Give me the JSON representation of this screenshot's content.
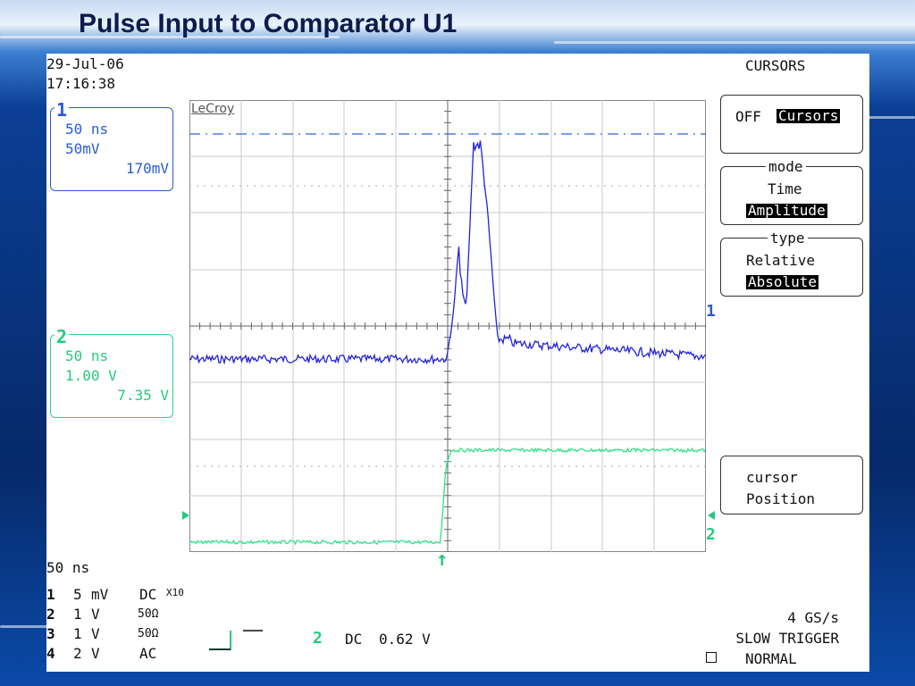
{
  "slide": {
    "title": "Pulse Input to Comparator U1"
  },
  "scope": {
    "date": "29-Jul-06",
    "time": "17:16:38",
    "brand": "LeCroy",
    "timebase": "50 ns",
    "channel1": {
      "number": "1",
      "timebase": "50 ns",
      "scale": "50mV",
      "offset": "170mV",
      "color": "#2a5bd7"
    },
    "channel2": {
      "number": "2",
      "timebase": "50 ns",
      "scale": "1.00 V",
      "offset": "7.35 V",
      "color": "#25c97c"
    },
    "ground_markers": {
      "ch1": "1",
      "ch2": "2"
    },
    "coupling_rows": [
      {
        "ch": "1",
        "scale": "5",
        "unit": "mV",
        "coupling": "DC",
        "probe": "X10"
      },
      {
        "ch": "2",
        "scale": "1",
        "unit": "V",
        "coupling": "50Ω",
        "probe": ""
      },
      {
        "ch": "3",
        "scale": "1",
        "unit": "V",
        "coupling": "50Ω",
        "probe": ""
      },
      {
        "ch": "4",
        "scale": "2",
        "unit": "V",
        "coupling": "AC",
        "probe": ""
      }
    ],
    "trigger": {
      "source": "2",
      "coupling": "DC",
      "level": "0.62 V",
      "rate": "4 GS/s",
      "mode": "SLOW TRIGGER",
      "state": "NORMAL"
    },
    "menu": {
      "title": "CURSORS",
      "cursors": {
        "off_label": "OFF",
        "on_label": "Cursors"
      },
      "mode": {
        "label": "mode",
        "opt1": "Time",
        "opt2": "Amplitude"
      },
      "type": {
        "label": "type",
        "opt1": "Relative",
        "opt2": "Absolute"
      },
      "position": {
        "line1": "cursor",
        "line2": "Position"
      }
    }
  }
}
